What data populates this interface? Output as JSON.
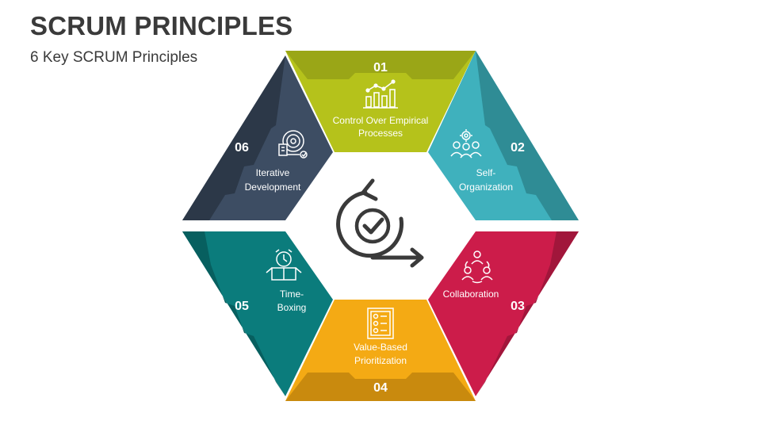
{
  "header": {
    "title": "SCRUM PRINCIPLES",
    "subtitle": "6 Key SCRUM Principles"
  },
  "principles": [
    {
      "number": "01",
      "label_line1": "Control Over Empirical",
      "label_line2": "Processes",
      "icon": "bar-chart-trend-icon",
      "color": "#b5c21b",
      "dark": "#9aa617"
    },
    {
      "number": "02",
      "label_line1": "Self-",
      "label_line2": "Organization",
      "icon": "team-gear-icon",
      "color": "#3fb1bd",
      "dark": "#2f8c95"
    },
    {
      "number": "03",
      "label_line1": "Collaboration",
      "label_line2": "",
      "icon": "people-cycle-icon",
      "color": "#cc1c4a",
      "dark": "#a1163b"
    },
    {
      "number": "04",
      "label_line1": "Value-Based",
      "label_line2": "Prioritization",
      "icon": "clipboard-checklist-icon",
      "color": "#f4aa14",
      "dark": "#c98a0e"
    },
    {
      "number": "05",
      "label_line1": "Time-",
      "label_line2": "Boxing",
      "icon": "alarm-clock-box-icon",
      "color": "#0b7c7c",
      "dark": "#075f5f"
    },
    {
      "number": "06",
      "label_line1": "Iterative",
      "label_line2": "Development",
      "icon": "iteration-cycle-icon",
      "color": "#3d4d63",
      "dark": "#2c3848"
    }
  ],
  "center_icon": "scrum-cycle-check-icon"
}
